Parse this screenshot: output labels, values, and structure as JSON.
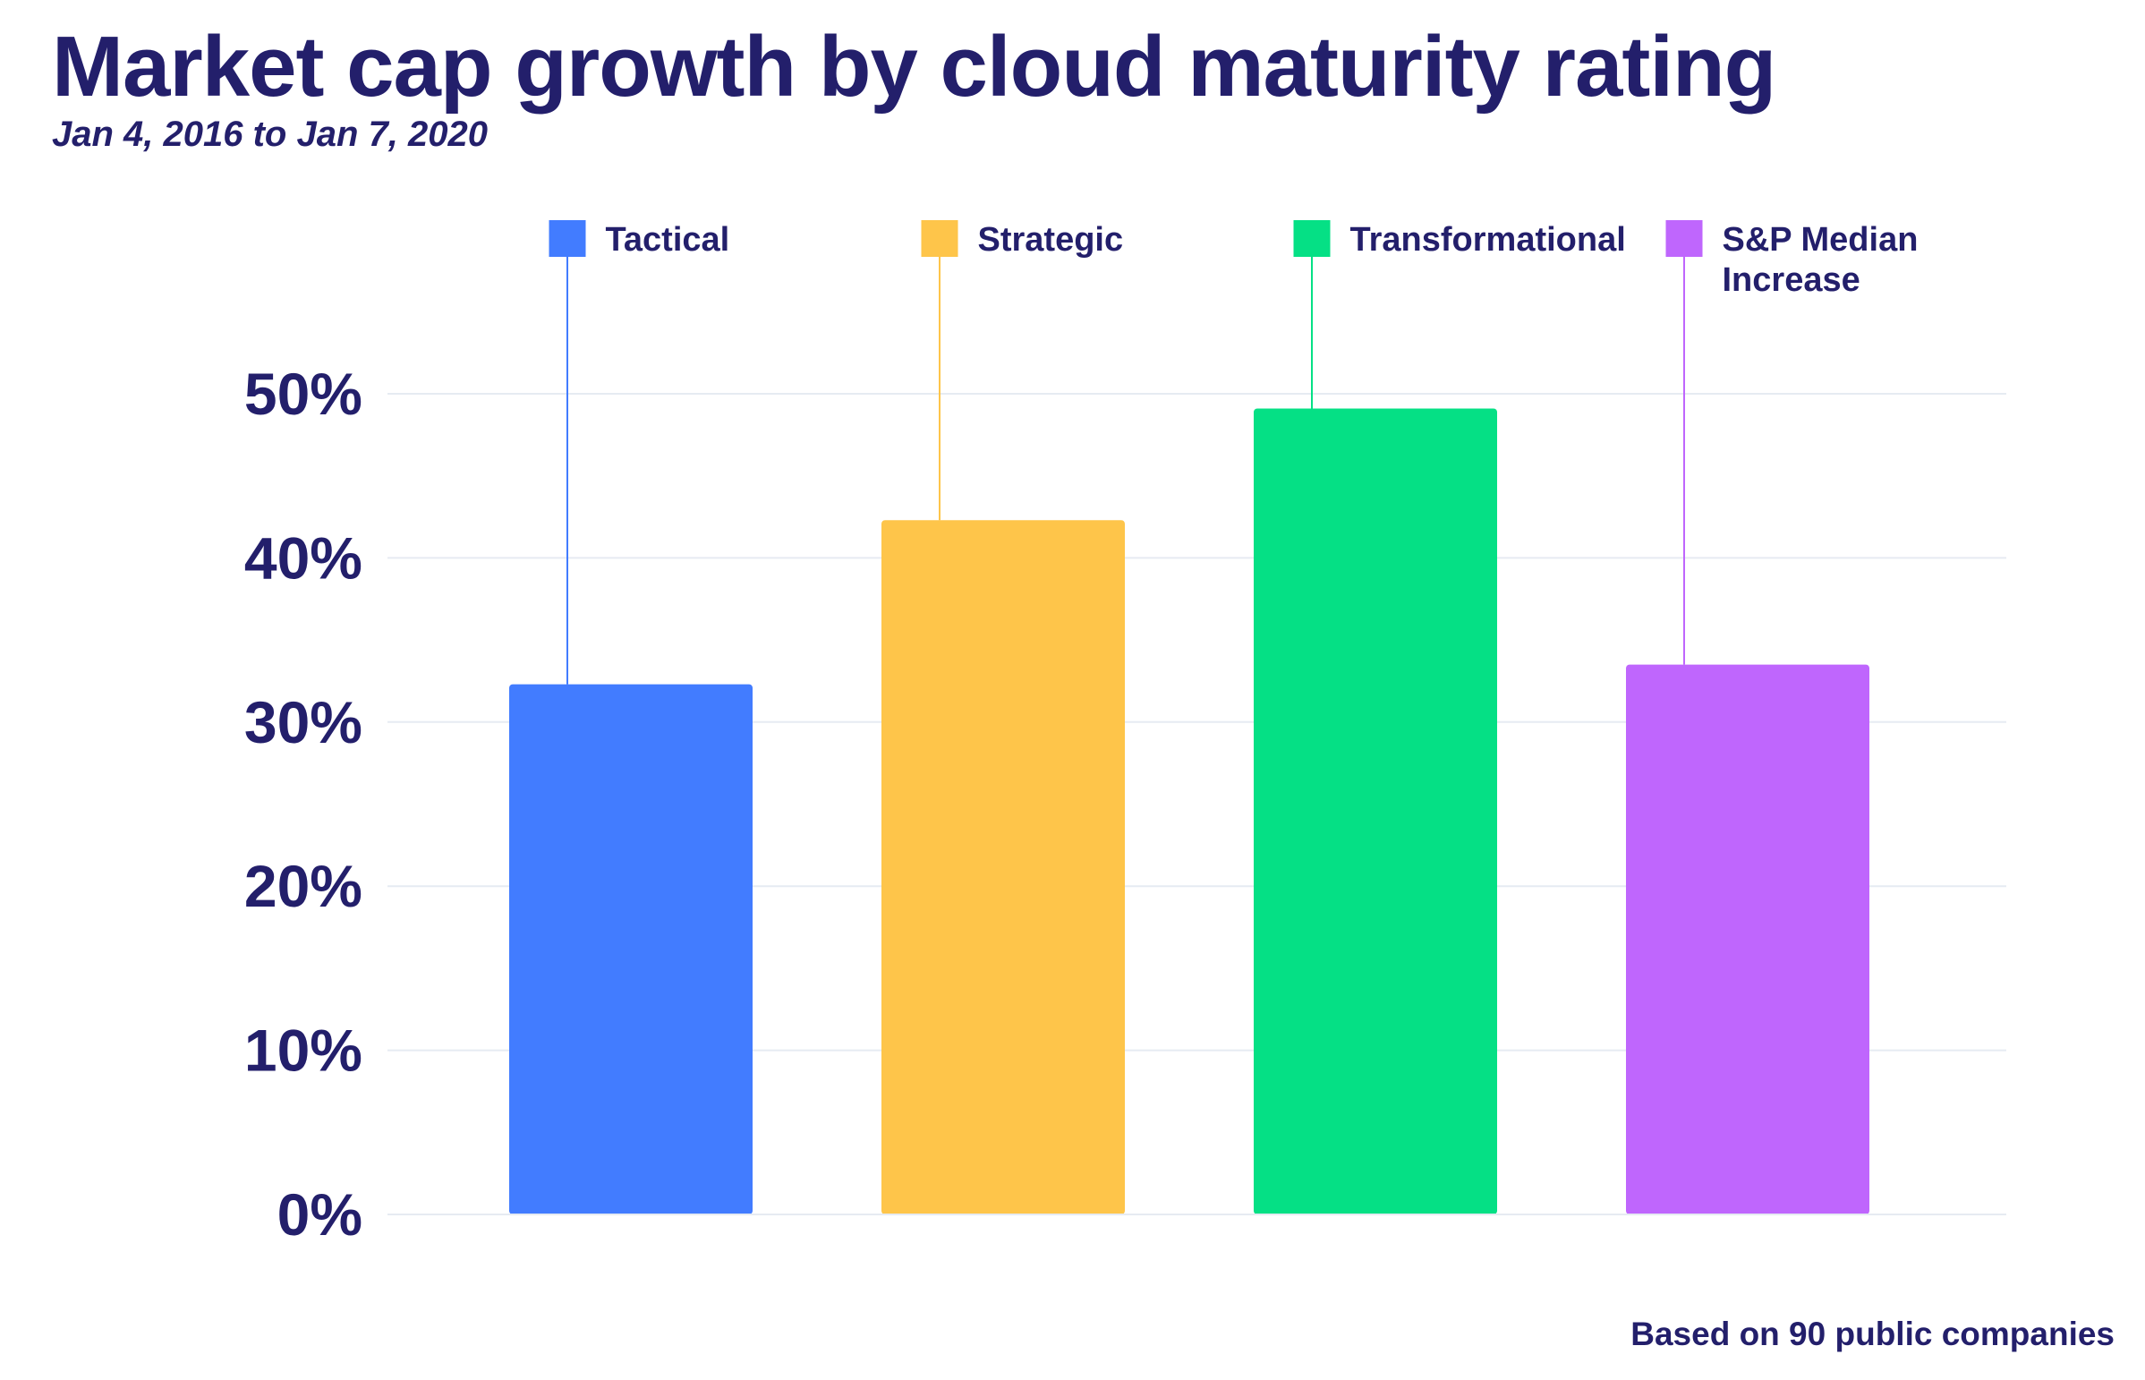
{
  "title": "Market cap growth by cloud maturity rating",
  "subtitle": "Jan 4, 2016 to Jan 7, 2020",
  "footnote": "Based on 90 public companies",
  "chart_data": {
    "type": "bar",
    "title": "Market cap growth by cloud maturity rating",
    "subtitle": "Jan 4, 2016 to Jan 7, 2020",
    "categories": [
      "Tactical",
      "Strategic",
      "Transformational",
      "S&P Median Increase"
    ],
    "values": [
      32.3,
      42.3,
      49.1,
      33.5
    ],
    "colors": [
      "#427cff",
      "#fec54a",
      "#05e085",
      "#bf66fd"
    ],
    "legend": [
      {
        "lines": [
          "Tactical"
        ],
        "color": "#427cff"
      },
      {
        "lines": [
          "Strategic"
        ],
        "color": "#fec54a"
      },
      {
        "lines": [
          "Transformational"
        ],
        "color": "#05e085"
      },
      {
        "lines": [
          "S&P Median",
          "Increase"
        ],
        "color": "#bf66fd"
      }
    ],
    "legend_placement": "top",
    "ylim": [
      0,
      50
    ],
    "yticks": [
      0,
      10,
      20,
      30,
      40,
      50
    ],
    "ytick_labels": [
      "0%",
      "10%",
      "20%",
      "30%",
      "40%",
      "50%"
    ],
    "xlabel": "",
    "ylabel": "",
    "grid": true,
    "grid_color": "#e6ebf2",
    "text_color": "#231f6b"
  }
}
